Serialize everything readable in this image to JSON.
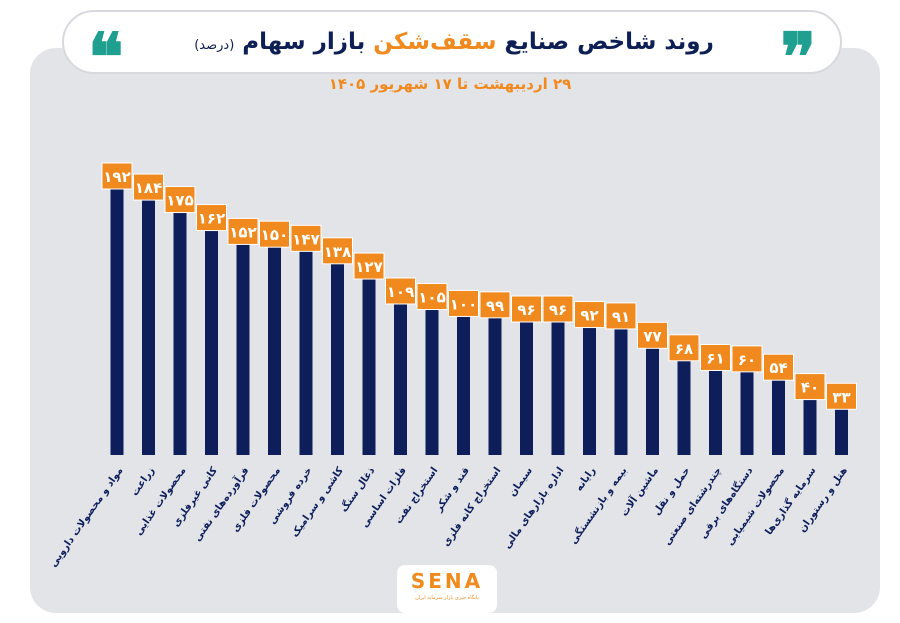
{
  "header": {
    "title_main": "روند شاخص صنایع",
    "title_accent": "سقف‌شکن",
    "title_rest": "بازار سهام",
    "title_unit": "(درصد)",
    "subtitle": "۲۹ اردیبهشت تا ۱۷ شهریور ۱۴۰۵"
  },
  "logo": {
    "name": "SENA",
    "tagline": "پایگاه خبری بازار سرمایه ایران"
  },
  "colors": {
    "bar": "#0e1e5b",
    "label_bg": "#f08a1e",
    "label_text": "#ffffff",
    "accent": "#f08a1e",
    "quote": "#1e9f8f",
    "panel": "#e3e4e8"
  },
  "chart_data": {
    "type": "bar",
    "categories": [
      "مواد و محصولات دارویی",
      "زراعت",
      "محصولات غذایی",
      "کانی غیرفلزی",
      "فرآورده‌های نفتی",
      "محصولات فلزی",
      "خرده فروشی",
      "کاشی و سرامیک",
      "ذغال سنگ",
      "فلزات اساسی",
      "استخراج نفت",
      "قند و شکر",
      "استخراج کانه فلزی",
      "سیمان",
      "اداره بازارهای مالی",
      "رایانه",
      "بیمه و بازنشستگی",
      "ماشین آلات",
      "حمل و نقل",
      "چندرشته‌ای صنعتی",
      "دستگاه‌های برقی",
      "محصولات شیمیایی",
      "سرمایه گذاری‌ها",
      "هتل و رستوران"
    ],
    "values": [
      192,
      184,
      175,
      162,
      152,
      150,
      147,
      138,
      127,
      109,
      105,
      100,
      99,
      96,
      96,
      92,
      91,
      77,
      68,
      61,
      60,
      54,
      40,
      33
    ],
    "value_labels": [
      "۱۹۲",
      "۱۸۴",
      "۱۷۵",
      "۱۶۲",
      "۱۵۲",
      "۱۵۰",
      "۱۴۷",
      "۱۳۸",
      "۱۲۷",
      "۱۰۹",
      "۱۰۵",
      "۱۰۰",
      "۹۹",
      "۹۶",
      "۹۶",
      "۹۲",
      "۹۱",
      "۷۷",
      "۶۸",
      "۶۱",
      "۶۰",
      "۵۴",
      "۴۰",
      "۳۳"
    ],
    "ylim": [
      0,
      192
    ],
    "grid": false,
    "legend": "none"
  }
}
